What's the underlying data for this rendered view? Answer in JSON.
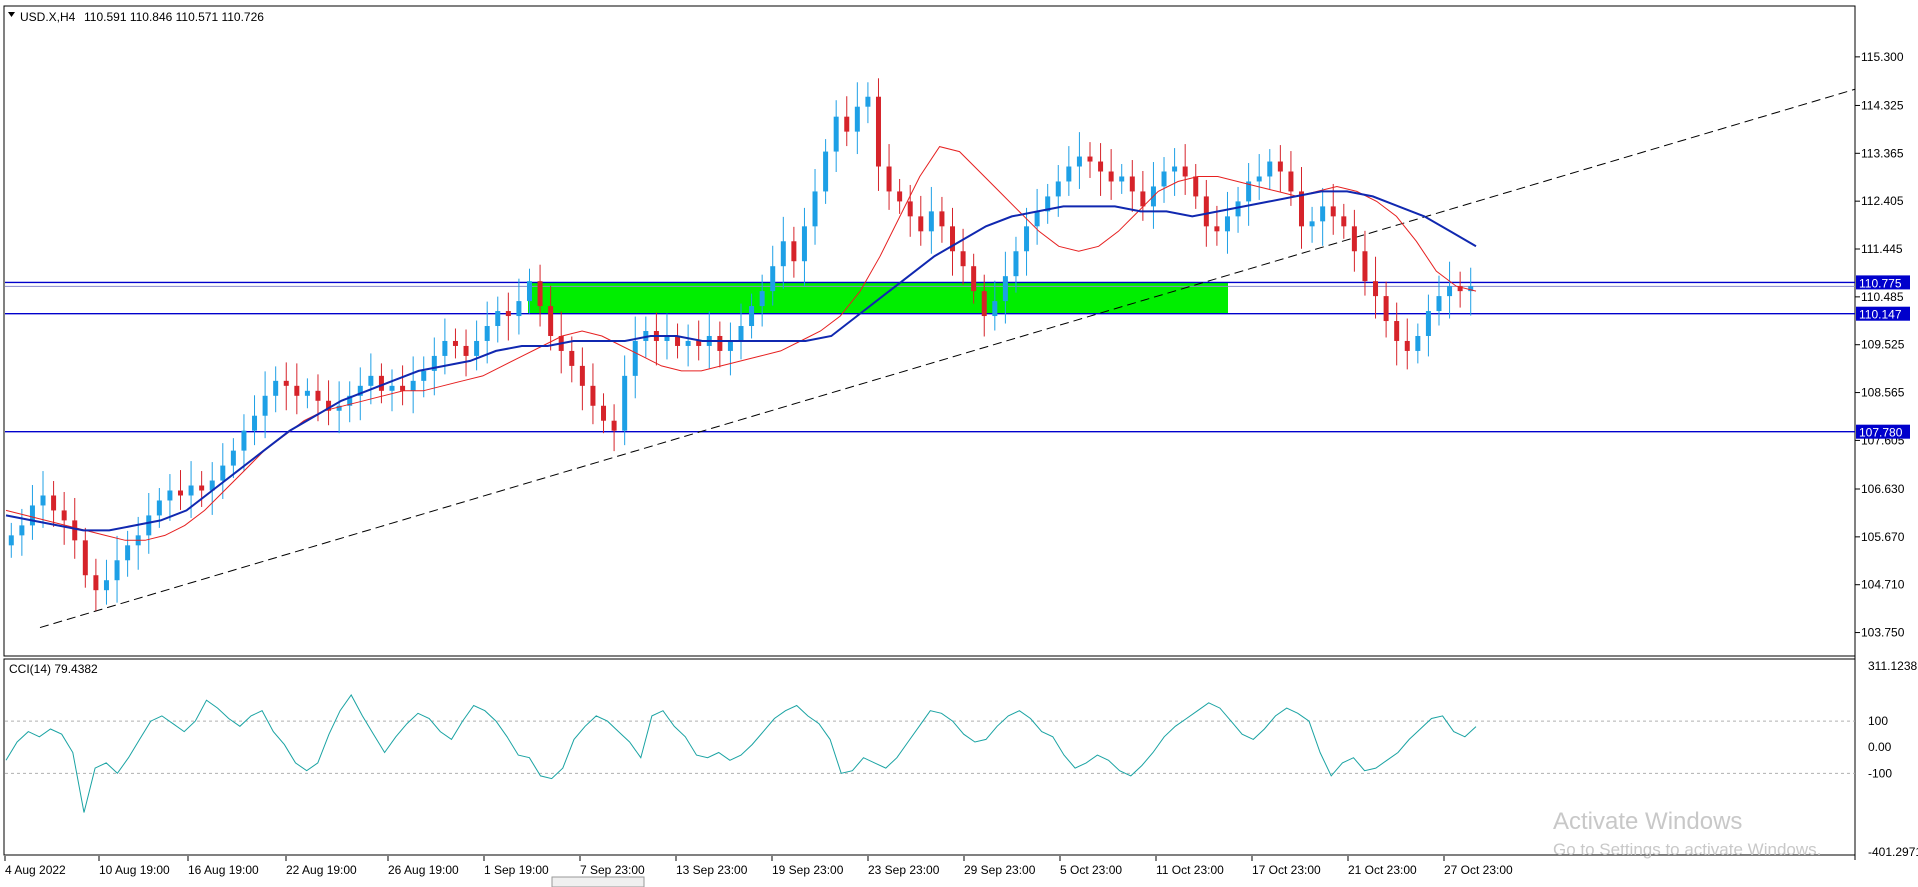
{
  "chart_data": [
    {
      "type": "candlestick",
      "title": "USD.X,H4",
      "ohlc_readout": "110.591 110.846 110.571 110.726",
      "y_ticks": [
        "115.300",
        "114.325",
        "113.365",
        "112.405",
        "111.445",
        "110.485",
        "109.525",
        "108.565",
        "107.605",
        "106.630",
        "105.670",
        "104.710",
        "103.750"
      ],
      "y_tick_values": [
        115.3,
        114.325,
        113.365,
        112.405,
        111.445,
        110.485,
        109.525,
        108.565,
        107.605,
        106.63,
        105.67,
        104.71,
        103.75
      ],
      "ylim": [
        103.4,
        116.2
      ],
      "x_ticks": [
        "4 Aug 2022",
        "10 Aug 19:00",
        "16 Aug 19:00",
        "22 Aug 19:00",
        "26 Aug 19:00",
        "1 Sep 19:00",
        "7 Sep 23:00",
        "13 Sep 23:00",
        "19 Sep 23:00",
        "23 Sep 23:00",
        "29 Sep 23:00",
        "5 Oct 23:00",
        "11 Oct 23:00",
        "17 Oct 23:00",
        "21 Oct 23:00",
        "27 Oct 23:00"
      ],
      "close_series": [
        105.7,
        105.9,
        106.3,
        106.5,
        106.2,
        106.0,
        105.6,
        104.9,
        104.6,
        104.8,
        105.2,
        105.5,
        105.7,
        106.1,
        106.4,
        106.6,
        106.5,
        106.7,
        106.6,
        106.8,
        107.1,
        107.4,
        107.8,
        108.1,
        108.5,
        108.8,
        108.7,
        108.5,
        108.6,
        108.4,
        108.2,
        108.3,
        108.5,
        108.7,
        108.9,
        108.6,
        108.7,
        108.6,
        108.8,
        109.0,
        109.3,
        109.6,
        109.5,
        109.3,
        109.6,
        109.9,
        110.2,
        110.1,
        110.4,
        110.8,
        110.3,
        109.7,
        109.4,
        109.1,
        108.7,
        108.3,
        108.0,
        107.8,
        108.9,
        109.6,
        109.8,
        109.6,
        109.7,
        109.5,
        109.6,
        109.5,
        109.7,
        109.4,
        109.6,
        109.9,
        110.3,
        110.6,
        111.1,
        111.6,
        111.2,
        111.9,
        112.6,
        113.4,
        114.1,
        113.8,
        114.3,
        114.5,
        113.1,
        112.6,
        112.4,
        112.1,
        111.8,
        112.2,
        111.9,
        111.4,
        111.1,
        110.6,
        110.1,
        110.4,
        110.9,
        111.4,
        111.9,
        112.2,
        112.5,
        112.8,
        113.1,
        113.3,
        113.2,
        113.0,
        112.8,
        112.9,
        112.6,
        112.3,
        112.7,
        113.0,
        113.1,
        112.9,
        112.5,
        111.9,
        111.8,
        112.1,
        112.4,
        112.8,
        112.9,
        113.2,
        113.0,
        112.6,
        111.9,
        112.0,
        112.3,
        112.1,
        111.9,
        111.4,
        110.8,
        110.5,
        110.0,
        109.6,
        109.4,
        109.7,
        110.2,
        110.5,
        110.7,
        110.6,
        110.7
      ],
      "ma_fast": [
        106.2,
        106.1,
        106.0,
        105.9,
        105.8,
        105.7,
        105.6,
        105.6,
        105.7,
        105.9,
        106.2,
        106.6,
        107.0,
        107.4,
        107.7,
        108.0,
        108.2,
        108.3,
        108.4,
        108.5,
        108.6,
        108.6,
        108.7,
        108.8,
        108.9,
        109.1,
        109.3,
        109.5,
        109.7,
        109.8,
        109.7,
        109.5,
        109.3,
        109.1,
        109.0,
        109.0,
        109.1,
        109.2,
        109.3,
        109.4,
        109.6,
        109.8,
        110.1,
        110.6,
        111.3,
        112.1,
        112.9,
        113.5,
        113.4,
        113.0,
        112.6,
        112.2,
        111.8,
        111.5,
        111.4,
        111.5,
        111.8,
        112.2,
        112.6,
        112.8,
        112.9,
        112.9,
        112.8,
        112.7,
        112.6,
        112.5,
        112.6,
        112.7,
        112.6,
        112.4,
        112.1,
        111.6,
        111.0,
        110.7,
        110.6
      ],
      "ma_slow": [
        106.1,
        106.0,
        105.9,
        105.8,
        105.8,
        105.9,
        106.0,
        106.2,
        106.6,
        107.0,
        107.4,
        107.8,
        108.1,
        108.4,
        108.6,
        108.8,
        109.0,
        109.1,
        109.2,
        109.4,
        109.5,
        109.5,
        109.6,
        109.6,
        109.6,
        109.7,
        109.7,
        109.6,
        109.6,
        109.6,
        109.6,
        109.6,
        109.7,
        110.1,
        110.5,
        110.9,
        111.3,
        111.6,
        111.9,
        112.1,
        112.2,
        112.3,
        112.3,
        112.3,
        112.2,
        112.2,
        112.1,
        112.2,
        112.3,
        112.4,
        112.5,
        112.6,
        112.6,
        112.5,
        112.3,
        112.1,
        111.8,
        111.5
      ],
      "levels": [
        {
          "label": "110.775",
          "value": 110.775,
          "color": "#0000cc"
        },
        {
          "label": "110.147",
          "value": 110.147,
          "color": "#0000cc"
        },
        {
          "label": "107.780",
          "value": 107.78,
          "color": "#0000cc"
        }
      ],
      "zone": {
        "from": 110.147,
        "to": 110.775,
        "color": "#00ee00"
      },
      "trendline": {
        "style": "dashed",
        "color": "#000000"
      },
      "colors": {
        "up": "#1ea0e6",
        "down": "#d6232a",
        "ma_fast": "#e62020",
        "ma_slow": "#1028b0"
      }
    },
    {
      "type": "line",
      "title": "CCI(14) 79.4382",
      "y_ticks": [
        "311.1238",
        "100",
        "0.00",
        "-100",
        "-401.2971"
      ],
      "y_tick_values": [
        311.1238,
        100,
        0,
        -100,
        -401.2971
      ],
      "ylim": [
        -401.2971,
        311.1238
      ],
      "series": [
        {
          "values": [
            -50,
            20,
            60,
            40,
            70,
            50,
            -20,
            -250,
            -80,
            -60,
            -100,
            -40,
            30,
            100,
            120,
            90,
            60,
            100,
            180,
            150,
            110,
            80,
            120,
            140,
            60,
            10,
            -60,
            -90,
            -60,
            50,
            140,
            200,
            120,
            50,
            -20,
            40,
            90,
            130,
            110,
            60,
            30,
            100,
            160,
            140,
            100,
            40,
            -30,
            -40,
            -110,
            -120,
            -80,
            30,
            80,
            120,
            100,
            60,
            20,
            -40,
            120,
            140,
            80,
            40,
            -30,
            -40,
            -20,
            -50,
            -30,
            10,
            60,
            110,
            140,
            160,
            120,
            90,
            30,
            -100,
            -90,
            -40,
            -60,
            -80,
            -40,
            20,
            80,
            140,
            130,
            100,
            50,
            20,
            30,
            80,
            120,
            140,
            110,
            60,
            40,
            -30,
            -80,
            -60,
            -30,
            -50,
            -90,
            -110,
            -70,
            -20,
            40,
            80,
            110,
            140,
            170,
            150,
            100,
            50,
            30,
            70,
            120,
            150,
            130,
            100,
            -20,
            -110,
            -60,
            -40,
            -90,
            -80,
            -50,
            -20,
            30,
            70,
            110,
            120,
            60,
            40,
            79
          ],
          "color": "#1aa3a3"
        }
      ]
    }
  ],
  "watermark": {
    "line1": "Activate Windows",
    "line2": "Go to Settings to activate Windows."
  }
}
